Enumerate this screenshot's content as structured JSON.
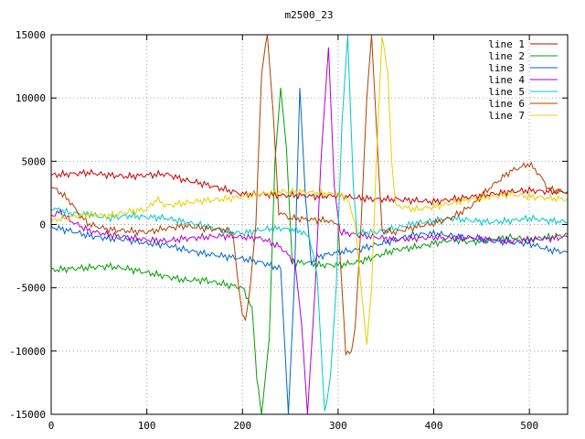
{
  "chart_data": {
    "type": "line",
    "title": "m2500_23",
    "xlabel": "",
    "ylabel": "",
    "xlim": [
      0,
      540
    ],
    "ylim": [
      -15000,
      15000
    ],
    "x_ticks": [
      0,
      100,
      200,
      300,
      400,
      500
    ],
    "y_ticks": [
      -15000,
      -10000,
      -5000,
      0,
      5000,
      10000,
      15000
    ],
    "grid": true,
    "legend_position": "top-right",
    "series": [
      {
        "name": "line 1",
        "color": "#cc0000",
        "points": [
          [
            0,
            3900
          ],
          [
            20,
            4000
          ],
          [
            40,
            4100
          ],
          [
            60,
            3900
          ],
          [
            80,
            3800
          ],
          [
            100,
            3900
          ],
          [
            120,
            4000
          ],
          [
            140,
            3500
          ],
          [
            160,
            3200
          ],
          [
            180,
            2800
          ],
          [
            200,
            2400
          ],
          [
            220,
            2400
          ],
          [
            240,
            2300
          ],
          [
            260,
            2300
          ],
          [
            280,
            2200
          ],
          [
            300,
            2300
          ],
          [
            320,
            2100
          ],
          [
            340,
            2000
          ],
          [
            360,
            2000
          ],
          [
            380,
            1900
          ],
          [
            400,
            1800
          ],
          [
            420,
            2000
          ],
          [
            440,
            2200
          ],
          [
            460,
            2400
          ],
          [
            480,
            2600
          ],
          [
            500,
            2700
          ],
          [
            520,
            2600
          ],
          [
            540,
            2600
          ]
        ]
      },
      {
        "name": "line 2",
        "color": "#00a000",
        "points": [
          [
            0,
            -3600
          ],
          [
            20,
            -3500
          ],
          [
            40,
            -3400
          ],
          [
            60,
            -3300
          ],
          [
            80,
            -3500
          ],
          [
            100,
            -3800
          ],
          [
            120,
            -4100
          ],
          [
            140,
            -4400
          ],
          [
            160,
            -4400
          ],
          [
            180,
            -4700
          ],
          [
            200,
            -5000
          ],
          [
            210,
            -6500
          ],
          [
            215,
            -12000
          ],
          [
            220,
            -15000
          ],
          [
            228,
            -9000
          ],
          [
            234,
            5000
          ],
          [
            240,
            10800
          ],
          [
            246,
            6000
          ],
          [
            252,
            -3000
          ],
          [
            258,
            -3000
          ],
          [
            270,
            -3000
          ],
          [
            280,
            -3200
          ],
          [
            300,
            -3200
          ],
          [
            320,
            -3000
          ],
          [
            340,
            -2500
          ],
          [
            360,
            -2000
          ],
          [
            380,
            -1800
          ],
          [
            400,
            -1500
          ],
          [
            420,
            -1200
          ],
          [
            440,
            -1400
          ],
          [
            460,
            -1200
          ],
          [
            480,
            -1000
          ],
          [
            500,
            -1200
          ],
          [
            520,
            -1000
          ],
          [
            540,
            -800
          ]
        ]
      },
      {
        "name": "line 3",
        "color": "#0066cc",
        "points": [
          [
            0,
            -200
          ],
          [
            20,
            -500
          ],
          [
            40,
            -900
          ],
          [
            60,
            -1100
          ],
          [
            80,
            -1200
          ],
          [
            100,
            -1500
          ],
          [
            120,
            -1600
          ],
          [
            140,
            -2000
          ],
          [
            160,
            -2300
          ],
          [
            180,
            -2500
          ],
          [
            200,
            -2700
          ],
          [
            220,
            -3000
          ],
          [
            240,
            -3500
          ],
          [
            248,
            -15000
          ],
          [
            254,
            -5000
          ],
          [
            260,
            10800
          ],
          [
            266,
            2000
          ],
          [
            272,
            -3000
          ],
          [
            280,
            -2500
          ],
          [
            300,
            -2200
          ],
          [
            320,
            -2000
          ],
          [
            340,
            -1600
          ],
          [
            360,
            -1200
          ],
          [
            380,
            -800
          ],
          [
            400,
            -700
          ],
          [
            420,
            -900
          ],
          [
            440,
            -1100
          ],
          [
            460,
            -1300
          ],
          [
            480,
            -1400
          ],
          [
            500,
            -1500
          ],
          [
            520,
            -2000
          ],
          [
            540,
            -2200
          ]
        ]
      },
      {
        "name": "line 4",
        "color": "#b000d0",
        "points": [
          [
            0,
            700
          ],
          [
            10,
            1000
          ],
          [
            20,
            300
          ],
          [
            40,
            -500
          ],
          [
            60,
            -800
          ],
          [
            80,
            -1000
          ],
          [
            100,
            -1200
          ],
          [
            120,
            -1300
          ],
          [
            140,
            -1100
          ],
          [
            160,
            -1000
          ],
          [
            180,
            -900
          ],
          [
            200,
            -1000
          ],
          [
            220,
            -1100
          ],
          [
            240,
            -1800
          ],
          [
            255,
            -3000
          ],
          [
            262,
            -8000
          ],
          [
            268,
            -15000
          ],
          [
            276,
            -5000
          ],
          [
            282,
            5000
          ],
          [
            290,
            14000
          ],
          [
            296,
            3000
          ],
          [
            302,
            -600
          ],
          [
            320,
            -800
          ],
          [
            340,
            -1000
          ],
          [
            360,
            -1200
          ],
          [
            380,
            -1100
          ],
          [
            400,
            -1000
          ],
          [
            420,
            -1100
          ],
          [
            440,
            -1000
          ],
          [
            460,
            -1200
          ],
          [
            480,
            -1300
          ],
          [
            500,
            -1200
          ],
          [
            520,
            -1100
          ],
          [
            540,
            -1000
          ]
        ]
      },
      {
        "name": "line 5",
        "color": "#00c8c8",
        "points": [
          [
            0,
            1300
          ],
          [
            20,
            900
          ],
          [
            40,
            800
          ],
          [
            60,
            500
          ],
          [
            80,
            700
          ],
          [
            100,
            600
          ],
          [
            120,
            500
          ],
          [
            140,
            200
          ],
          [
            160,
            -100
          ],
          [
            180,
            -500
          ],
          [
            200,
            -700
          ],
          [
            220,
            -400
          ],
          [
            240,
            -300
          ],
          [
            260,
            -500
          ],
          [
            270,
            -1000
          ],
          [
            278,
            -4000
          ],
          [
            286,
            -15000
          ],
          [
            292,
            -12000
          ],
          [
            298,
            -5000
          ],
          [
            304,
            8000
          ],
          [
            310,
            15000
          ],
          [
            316,
            3000
          ],
          [
            320,
            -700
          ],
          [
            340,
            -600
          ],
          [
            360,
            -300
          ],
          [
            380,
            100
          ],
          [
            400,
            300
          ],
          [
            420,
            500
          ],
          [
            440,
            300
          ],
          [
            460,
            200
          ],
          [
            480,
            300
          ],
          [
            500,
            500
          ],
          [
            520,
            300
          ],
          [
            540,
            200
          ]
        ]
      },
      {
        "name": "line 6",
        "color": "#b04000",
        "points": [
          [
            0,
            3000
          ],
          [
            10,
            2500
          ],
          [
            20,
            1800
          ],
          [
            30,
            700
          ],
          [
            40,
            0
          ],
          [
            60,
            -400
          ],
          [
            80,
            -500
          ],
          [
            100,
            -600
          ],
          [
            120,
            -300
          ],
          [
            140,
            -100
          ],
          [
            160,
            -300
          ],
          [
            180,
            -400
          ],
          [
            190,
            -700
          ],
          [
            196,
            -5000
          ],
          [
            200,
            -7000
          ],
          [
            203,
            -7800
          ],
          [
            208,
            -5000
          ],
          [
            214,
            0
          ],
          [
            220,
            12000
          ],
          [
            226,
            15000
          ],
          [
            232,
            9000
          ],
          [
            238,
            1000
          ],
          [
            250,
            500
          ],
          [
            270,
            400
          ],
          [
            290,
            300
          ],
          [
            300,
            0
          ],
          [
            304,
            -5000
          ],
          [
            308,
            -10000
          ],
          [
            314,
            -10200
          ],
          [
            318,
            -8000
          ],
          [
            324,
            0
          ],
          [
            330,
            10000
          ],
          [
            335,
            15000
          ],
          [
            342,
            5000
          ],
          [
            346,
            -500
          ],
          [
            360,
            -600
          ],
          [
            380,
            -200
          ],
          [
            400,
            100
          ],
          [
            420,
            600
          ],
          [
            440,
            1500
          ],
          [
            460,
            3000
          ],
          [
            480,
            4200
          ],
          [
            500,
            4800
          ],
          [
            510,
            4000
          ],
          [
            520,
            2800
          ],
          [
            540,
            2500
          ]
        ]
      },
      {
        "name": "line 7",
        "color": "#e8d000",
        "points": [
          [
            0,
            300
          ],
          [
            20,
            600
          ],
          [
            40,
            800
          ],
          [
            60,
            700
          ],
          [
            80,
            1000
          ],
          [
            100,
            1200
          ],
          [
            110,
            2000
          ],
          [
            120,
            1500
          ],
          [
            140,
            1700
          ],
          [
            160,
            1900
          ],
          [
            180,
            2000
          ],
          [
            200,
            2200
          ],
          [
            220,
            2400
          ],
          [
            240,
            2600
          ],
          [
            260,
            2600
          ],
          [
            280,
            2500
          ],
          [
            300,
            2400
          ],
          [
            310,
            2000
          ],
          [
            318,
            0
          ],
          [
            324,
            -5000
          ],
          [
            330,
            -9500
          ],
          [
            335,
            -5000
          ],
          [
            340,
            5000
          ],
          [
            346,
            15000
          ],
          [
            352,
            12000
          ],
          [
            356,
            5000
          ],
          [
            360,
            1500
          ],
          [
            380,
            1200
          ],
          [
            400,
            1400
          ],
          [
            420,
            1700
          ],
          [
            440,
            2000
          ],
          [
            460,
            2200
          ],
          [
            480,
            2400
          ],
          [
            500,
            2200
          ],
          [
            520,
            2100
          ],
          [
            540,
            2000
          ]
        ]
      }
    ]
  }
}
